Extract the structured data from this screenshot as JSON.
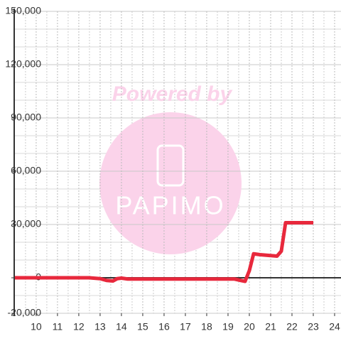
{
  "chart_data": {
    "type": "line",
    "x": [
      9,
      10,
      11,
      12,
      12.5,
      13,
      13.3,
      13.6,
      13.8,
      14,
      14.3,
      15,
      16,
      17,
      18,
      19,
      19.3,
      19.6,
      19.8,
      20,
      20.2,
      20.5,
      21,
      21.3,
      21.5,
      21.7,
      22,
      23
    ],
    "series": [
      {
        "name": "value",
        "color": "#e8283c",
        "values": [
          0,
          0,
          0,
          0,
          0,
          -500,
          -1500,
          -1800,
          -500,
          -200,
          -700,
          -700,
          -700,
          -700,
          -700,
          -700,
          -700,
          -1500,
          -2000,
          4000,
          13500,
          13000,
          12500,
          12200,
          15000,
          31000,
          31000,
          31000
        ]
      }
    ],
    "xlim": [
      8.97,
      24.3
    ],
    "xticks": [
      10,
      11,
      12,
      13,
      14,
      15,
      16,
      17,
      18,
      19,
      20,
      21,
      22,
      23,
      24
    ],
    "xminor": [
      9.5,
      10.5,
      11.5,
      12.5,
      13.5,
      14.5,
      15.5,
      16.5,
      17.5,
      18.5,
      19.5,
      20.5,
      21.5,
      22.5,
      23.5
    ],
    "ylim": [
      -20000,
      150000
    ],
    "yticks": [
      {
        "value": -20000,
        "label": "-20,000"
      },
      0,
      {
        "value": 30000,
        "label": "30,000"
      },
      {
        "value": 60000,
        "label": "60,000"
      },
      {
        "value": 90000,
        "label": "90,000"
      },
      {
        "value": 120000,
        "label": "120,000"
      },
      {
        "value": 150000,
        "label": "150,000"
      }
    ],
    "yminor": [
      -10000,
      10000,
      20000,
      40000,
      50000,
      70000,
      80000,
      100000,
      110000,
      130000,
      140000
    ],
    "grid": true,
    "watermark": {
      "top": "Powered by",
      "logo": "PAPIMO"
    }
  }
}
